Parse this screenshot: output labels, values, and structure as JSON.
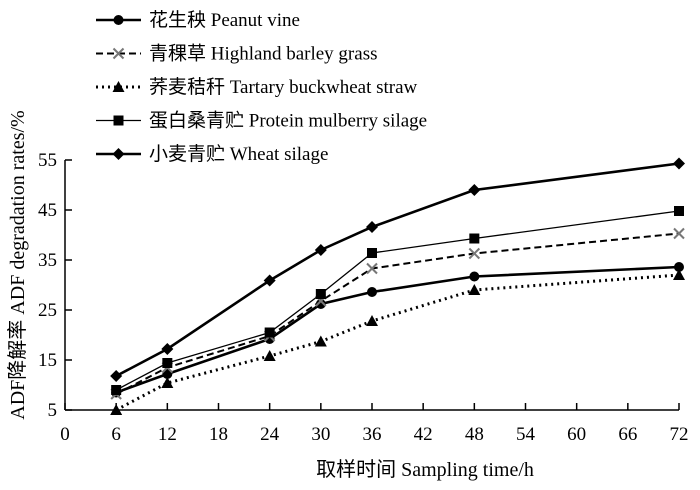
{
  "chart_data": {
    "type": "line",
    "title": "",
    "xlabel": "取样时间  Sampling time/h",
    "ylabel": "ADF降解率  ADF degradation rates/%",
    "xlim": [
      0,
      72
    ],
    "ylim": [
      5,
      55
    ],
    "xticks": [
      0,
      6,
      12,
      18,
      24,
      30,
      36,
      42,
      48,
      54,
      60,
      66,
      72
    ],
    "yticks": [
      5,
      15,
      25,
      35,
      45,
      55
    ],
    "grid": false,
    "legend_position": "top-left",
    "x": [
      6,
      12,
      24,
      30,
      36,
      48,
      72
    ],
    "series": [
      {
        "name": "花生秧 Peanut vine",
        "marker": "circle",
        "line_style": "solid-thick",
        "color": "#000000",
        "values": [
          8.5,
          12.2,
          19.2,
          26.2,
          28.6,
          31.7,
          33.6
        ]
      },
      {
        "name": "青稞草 Highland barley grass",
        "marker": "x",
        "line_style": "dashed",
        "color": "#000000",
        "values": [
          8.2,
          13.5,
          19.8,
          26.8,
          33.3,
          36.3,
          40.3
        ]
      },
      {
        "name": "荞麦秸秆 Tartary buckwheat straw",
        "marker": "triangle",
        "line_style": "dotted",
        "color": "#000000",
        "values": [
          5.0,
          10.4,
          15.8,
          18.7,
          22.8,
          29.0,
          32.0
        ]
      },
      {
        "name": "蛋白桑青贮 Protein mulberry silage",
        "marker": "square",
        "line_style": "solid-thin",
        "color": "#000000",
        "values": [
          9.0,
          14.4,
          20.5,
          28.2,
          36.4,
          39.3,
          44.8
        ]
      },
      {
        "name": "小麦青贮  Wheat silage",
        "marker": "diamond",
        "line_style": "solid-thick",
        "color": "#000000",
        "values": [
          11.8,
          17.2,
          30.9,
          37.0,
          41.6,
          49.0,
          54.3
        ]
      }
    ]
  }
}
